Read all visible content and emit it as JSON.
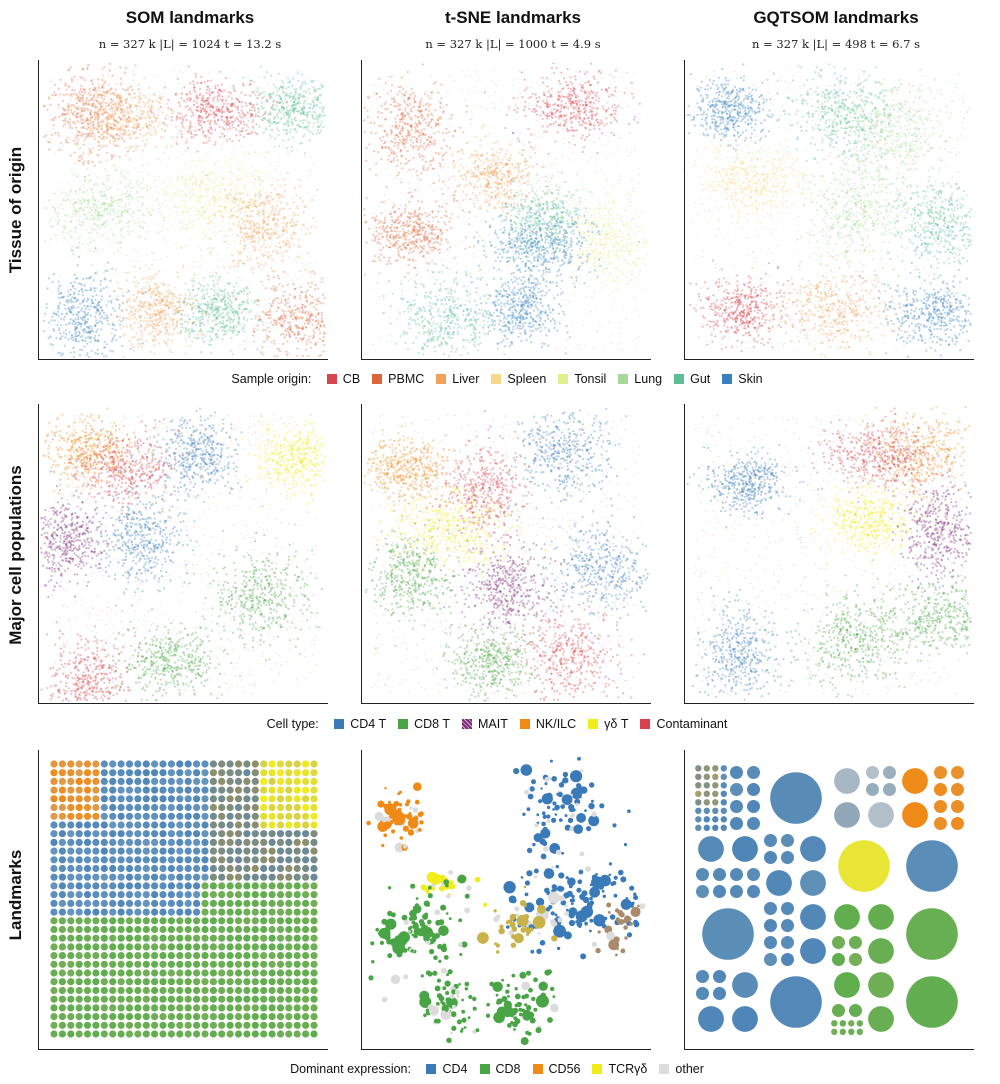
{
  "columns": [
    {
      "title": "SOM landmarks",
      "subtitle": "n = 327 k   |L| = 1024   t = 13.2 s"
    },
    {
      "title": "t-SNE landmarks",
      "subtitle": "n = 327 k   |L| = 1000   t = 4.9 s"
    },
    {
      "title": "GQTSOM landmarks",
      "subtitle": "n = 327 k   |L| = 498   t = 6.7 s"
    }
  ],
  "rows": [
    {
      "title": "Tissue of origin"
    },
    {
      "title": "Major cell populations"
    },
    {
      "title": "Landmarks"
    }
  ],
  "legends": {
    "origin": {
      "title": "Sample origin:",
      "items": [
        {
          "label": "CB",
          "color": "#d6464f"
        },
        {
          "label": "PBMC",
          "color": "#e0643a"
        },
        {
          "label": "Liver",
          "color": "#f0a25d"
        },
        {
          "label": "Spleen",
          "color": "#f6d98a"
        },
        {
          "label": "Tonsil",
          "color": "#e4ee8f"
        },
        {
          "label": "Lung",
          "color": "#a9d99a"
        },
        {
          "label": "Gut",
          "color": "#5dbd94"
        },
        {
          "label": "Skin",
          "color": "#3a80c0"
        }
      ]
    },
    "celltype": {
      "title": "Cell type:",
      "items": [
        {
          "label": "CD4 T",
          "color": "#3b7ab9"
        },
        {
          "label": "CD8 T",
          "color": "#49a446"
        },
        {
          "label": "MAIT",
          "color": "#7a2a76",
          "pattern": "hatch"
        },
        {
          "label": "NK/ILC",
          "color": "#f08a16"
        },
        {
          "label": "γδ T",
          "color": "#f1ed1b"
        },
        {
          "label": "Contaminant",
          "color": "#d5424e"
        }
      ]
    },
    "expression": {
      "title": "Dominant expression:",
      "items": [
        {
          "label": "CD4",
          "color": "#3b7ab9"
        },
        {
          "label": "CD8",
          "color": "#49a446"
        },
        {
          "label": "CD56",
          "color": "#f08a16"
        },
        {
          "label": "TCRγδ",
          "color": "#f1ed1b"
        },
        {
          "label": "other",
          "color": "#dcdcdc"
        }
      ]
    }
  },
  "chart_data": [
    {
      "type": "scatter",
      "method": "SOM",
      "coloring": "Sample origin",
      "points": 327000,
      "regions": [
        {
          "label": "CB",
          "x": 0.62,
          "y": 0.85
        },
        {
          "label": "PBMC",
          "x": 0.17,
          "y": 0.84
        },
        {
          "label": "Liver",
          "x": 0.28,
          "y": 0.82
        },
        {
          "label": "Gut",
          "x": 0.9,
          "y": 0.86
        },
        {
          "label": "Tonsil",
          "x": 0.6,
          "y": 0.55
        },
        {
          "label": "Lung",
          "x": 0.2,
          "y": 0.5
        },
        {
          "label": "Liver",
          "x": 0.8,
          "y": 0.45
        },
        {
          "label": "Skin",
          "x": 0.14,
          "y": 0.12
        },
        {
          "label": "Gut",
          "x": 0.62,
          "y": 0.14
        },
        {
          "label": "Liver",
          "x": 0.4,
          "y": 0.14
        },
        {
          "label": "PBMC",
          "x": 0.93,
          "y": 0.11
        }
      ]
    },
    {
      "type": "scatter",
      "method": "t-SNE",
      "coloring": "Sample origin",
      "points": 327000,
      "regions": [
        {
          "label": "CB",
          "x": 0.73,
          "y": 0.86
        },
        {
          "label": "PBMC",
          "x": 0.15,
          "y": 0.79
        },
        {
          "label": "PBMC",
          "x": 0.15,
          "y": 0.42
        },
        {
          "label": "Gut",
          "x": 0.62,
          "y": 0.46
        },
        {
          "label": "Tonsil",
          "x": 0.86,
          "y": 0.4
        },
        {
          "label": "Skin",
          "x": 0.56,
          "y": 0.15
        },
        {
          "label": "Skin",
          "x": 0.63,
          "y": 0.37
        },
        {
          "label": "Gut",
          "x": 0.28,
          "y": 0.12
        },
        {
          "label": "Liver",
          "x": 0.45,
          "y": 0.62
        }
      ]
    },
    {
      "type": "scatter",
      "method": "GQTSOM",
      "coloring": "Sample origin",
      "points": 327000,
      "regions": [
        {
          "label": "Skin",
          "x": 0.14,
          "y": 0.85
        },
        {
          "label": "Gut",
          "x": 0.55,
          "y": 0.84
        },
        {
          "label": "Lung",
          "x": 0.74,
          "y": 0.78
        },
        {
          "label": "Spleen",
          "x": 0.22,
          "y": 0.6
        },
        {
          "label": "CB",
          "x": 0.18,
          "y": 0.15
        },
        {
          "label": "Liver",
          "x": 0.52,
          "y": 0.15
        },
        {
          "label": "Skin",
          "x": 0.88,
          "y": 0.14
        },
        {
          "label": "Gut",
          "x": 0.9,
          "y": 0.45
        },
        {
          "label": "Lung",
          "x": 0.6,
          "y": 0.5
        }
      ]
    },
    {
      "type": "scatter",
      "method": "SOM",
      "coloring": "Cell type",
      "points": 327000,
      "regions": [
        {
          "label": "NK/ILC",
          "x": 0.16,
          "y": 0.86
        },
        {
          "label": "CD4 T",
          "x": 0.55,
          "y": 0.85
        },
        {
          "label": "γδ T",
          "x": 0.91,
          "y": 0.84
        },
        {
          "label": "Contaminant",
          "x": 0.3,
          "y": 0.8
        },
        {
          "label": "CD4 T",
          "x": 0.35,
          "y": 0.55
        },
        {
          "label": "CD8 T",
          "x": 0.78,
          "y": 0.35
        },
        {
          "label": "CD8 T",
          "x": 0.45,
          "y": 0.12
        },
        {
          "label": "MAIT",
          "x": 0.08,
          "y": 0.55
        },
        {
          "label": "Contaminant",
          "x": 0.15,
          "y": 0.05
        }
      ]
    },
    {
      "type": "scatter",
      "method": "t-SNE",
      "coloring": "Cell type",
      "points": 327000,
      "regions": [
        {
          "label": "NK/ILC",
          "x": 0.13,
          "y": 0.8
        },
        {
          "label": "CD4 T",
          "x": 0.72,
          "y": 0.86
        },
        {
          "label": "CD4 T",
          "x": 0.85,
          "y": 0.45
        },
        {
          "label": "γδ T",
          "x": 0.3,
          "y": 0.58
        },
        {
          "label": "CD8 T",
          "x": 0.15,
          "y": 0.42
        },
        {
          "label": "CD8 T",
          "x": 0.45,
          "y": 0.12
        },
        {
          "label": "MAIT",
          "x": 0.5,
          "y": 0.38
        },
        {
          "label": "Contaminant",
          "x": 0.42,
          "y": 0.72
        },
        {
          "label": "Contaminant",
          "x": 0.74,
          "y": 0.14
        }
      ]
    },
    {
      "type": "scatter",
      "method": "GQTSOM",
      "coloring": "Cell type",
      "points": 327000,
      "regions": [
        {
          "label": "CD4 T",
          "x": 0.2,
          "y": 0.75
        },
        {
          "label": "CD4 T",
          "x": 0.18,
          "y": 0.15
        },
        {
          "label": "NK/ILC",
          "x": 0.82,
          "y": 0.85
        },
        {
          "label": "γδ T",
          "x": 0.65,
          "y": 0.62
        },
        {
          "label": "MAIT",
          "x": 0.9,
          "y": 0.58
        },
        {
          "label": "CD8 T",
          "x": 0.6,
          "y": 0.2
        },
        {
          "label": "CD8 T",
          "x": 0.9,
          "y": 0.28
        },
        {
          "label": "Contaminant",
          "x": 0.68,
          "y": 0.85
        }
      ]
    },
    {
      "type": "scatter",
      "method": "SOM",
      "coloring": "Dominant expression",
      "landmarks": 1024
    },
    {
      "type": "scatter",
      "method": "t-SNE",
      "coloring": "Dominant expression",
      "landmarks": 1000
    },
    {
      "type": "scatter",
      "method": "GQTSOM",
      "coloring": "Dominant expression",
      "landmarks": 498
    }
  ]
}
